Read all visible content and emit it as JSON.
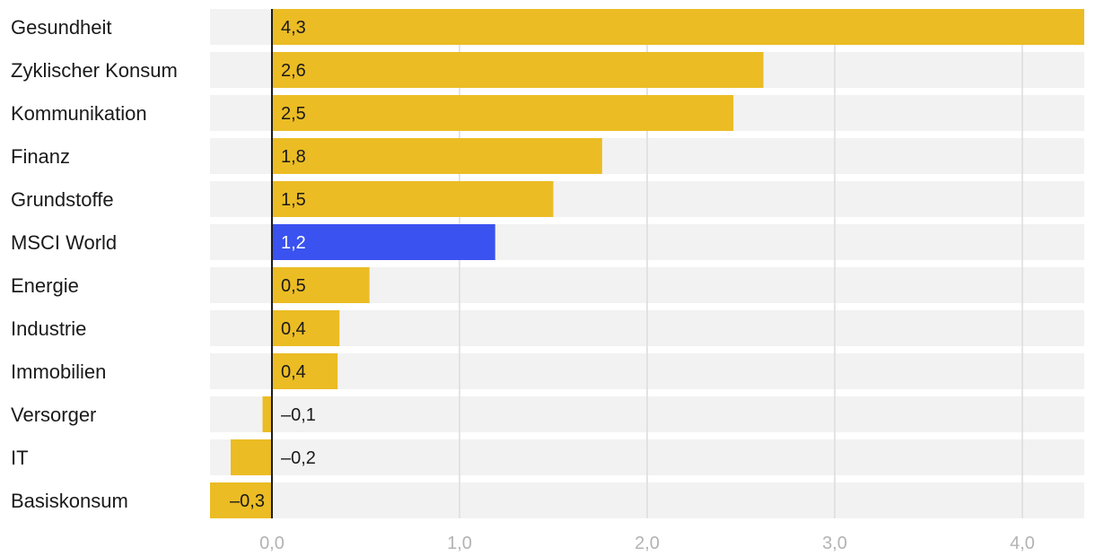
{
  "chart_data": {
    "type": "bar",
    "orientation": "horizontal",
    "categories": [
      "Gesundheit",
      "Zyklischer Konsum",
      "Kommunikation",
      "Finanz",
      "Grundstoffe",
      "MSCI World",
      "Energie",
      "Industrie",
      "Immobilien",
      "Versorger",
      "IT",
      "Basiskonsum"
    ],
    "values": [
      4.33,
      2.62,
      2.46,
      1.76,
      1.5,
      1.19,
      0.52,
      0.36,
      0.35,
      -0.05,
      -0.22,
      -0.33
    ],
    "value_labels": [
      "4,3",
      "2,6",
      "2,5",
      "1,8",
      "1,5",
      "1,2",
      "0,5",
      "0,4",
      "0,4",
      "–0,1",
      "–0,2",
      "–0,3"
    ],
    "highlight": "MSCI World",
    "xlim": [
      -0.33,
      4.33
    ],
    "xticks": [
      0,
      1,
      2,
      3,
      4
    ],
    "xtick_labels": [
      "0,0",
      "1,0",
      "2,0",
      "3,0",
      "4,0"
    ],
    "title": "",
    "xlabel": "",
    "ylabel": "",
    "grid": true,
    "colors": {
      "bar": "#ebbc24",
      "highlight": "#3a53f0",
      "band": "#f2f2f2",
      "grid": "#dcdcdc",
      "zero_line": "#1a1a1a",
      "tick_text": "#b3b3b3",
      "label_text": "#1a1a1a",
      "highlight_text": "#ffffff"
    }
  }
}
